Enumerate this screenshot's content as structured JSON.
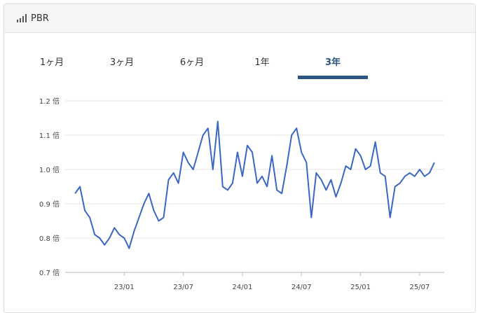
{
  "header": {
    "title": "PBR",
    "icon": "signal-bars-icon"
  },
  "tabs": [
    {
      "label": "1ヶ月",
      "active": false
    },
    {
      "label": "3ヶ月",
      "active": false
    },
    {
      "label": "6ヶ月",
      "active": false
    },
    {
      "label": "1年",
      "active": false
    },
    {
      "label": "3年",
      "active": true
    }
  ],
  "colors": {
    "line": "#3a66c4",
    "active_tab": "#2c5582",
    "grid": "#e4e4e4"
  },
  "chart_data": {
    "type": "line",
    "title": "",
    "xlabel": "",
    "ylabel": "",
    "y_unit": "倍",
    "yticks": [
      "1.2 倍",
      "1.1 倍",
      "1.0 倍",
      "0.9 倍",
      "0.8 倍",
      "0.7 倍"
    ],
    "ylim": [
      0.7,
      1.2
    ],
    "xlim": [
      "2022-07",
      "2025-09"
    ],
    "xticks": [
      "23/01",
      "23/07",
      "24/01",
      "24/07",
      "25/01",
      "25/07"
    ],
    "grid": true,
    "series": [
      {
        "x": [
          "2022-08",
          "2022-08",
          "2022-09",
          "2022-09",
          "2022-10",
          "2022-10",
          "2022-11",
          "2022-11",
          "2022-12",
          "2022-12",
          "2023-01",
          "2023-01",
          "2023-02",
          "2023-02",
          "2023-03",
          "2023-03",
          "2023-04",
          "2023-04",
          "2023-05",
          "2023-05",
          "2023-06",
          "2023-06",
          "2023-07",
          "2023-07",
          "2023-08",
          "2023-08",
          "2023-09",
          "2023-09",
          "2023-10",
          "2023-10",
          "2023-11",
          "2023-11",
          "2023-12",
          "2023-12",
          "2024-01",
          "2024-01",
          "2024-02",
          "2024-02",
          "2024-03",
          "2024-03",
          "2024-04",
          "2024-04",
          "2024-05",
          "2024-05",
          "2024-06",
          "2024-06",
          "2024-07",
          "2024-07",
          "2024-08",
          "2024-08",
          "2024-09",
          "2024-09",
          "2024-10",
          "2024-10",
          "2024-11",
          "2024-11",
          "2024-12",
          "2024-12",
          "2025-01",
          "2025-01",
          "2025-02",
          "2025-02",
          "2025-03",
          "2025-03",
          "2025-04",
          "2025-04",
          "2025-05",
          "2025-05",
          "2025-06",
          "2025-06",
          "2025-07",
          "2025-07",
          "2025-08",
          "2025-08"
        ],
        "values": [
          0.93,
          0.95,
          0.88,
          0.86,
          0.81,
          0.8,
          0.78,
          0.8,
          0.83,
          0.81,
          0.8,
          0.77,
          0.82,
          0.86,
          0.9,
          0.93,
          0.88,
          0.85,
          0.86,
          0.97,
          0.99,
          0.96,
          1.05,
          1.02,
          1.0,
          1.05,
          1.1,
          1.12,
          1.0,
          1.14,
          0.95,
          0.94,
          0.96,
          1.05,
          0.98,
          1.07,
          1.05,
          0.96,
          0.98,
          0.95,
          1.04,
          0.94,
          0.93,
          1.01,
          1.1,
          1.12,
          1.05,
          1.02,
          0.86,
          0.99,
          0.97,
          0.94,
          0.97,
          0.92,
          0.96,
          1.01,
          1.0,
          1.06,
          1.04,
          1.0,
          1.01,
          1.08,
          0.99,
          0.98,
          0.86,
          0.95,
          0.96,
          0.98,
          0.99,
          0.98,
          1.0,
          0.98,
          0.99,
          1.02
        ]
      }
    ]
  }
}
